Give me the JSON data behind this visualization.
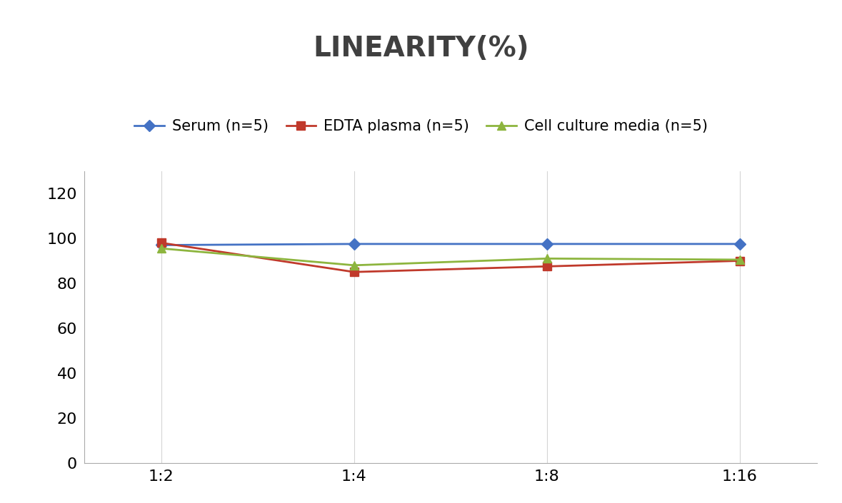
{
  "title": "LINEARITY(%)",
  "x_labels": [
    "1:2",
    "1:4",
    "1:8",
    "1:16"
  ],
  "x_positions": [
    0,
    1,
    2,
    3
  ],
  "series": [
    {
      "name": "Serum (n=5)",
      "values": [
        97,
        97.5,
        97.5,
        97.5
      ],
      "color": "#4472C4",
      "marker": "D",
      "linewidth": 2.0,
      "markersize": 8
    },
    {
      "name": "EDTA plasma (n=5)",
      "values": [
        98,
        85,
        87.5,
        90
      ],
      "color": "#C0392B",
      "marker": "s",
      "linewidth": 2.0,
      "markersize": 8
    },
    {
      "name": "Cell culture media (n=5)",
      "values": [
        95.5,
        88,
        91,
        90.5
      ],
      "color": "#8DB53E",
      "marker": "^",
      "linewidth": 2.0,
      "markersize": 8
    }
  ],
  "ylim": [
    0,
    130
  ],
  "yticks": [
    0,
    20,
    40,
    60,
    80,
    100,
    120
  ],
  "background_color": "#ffffff",
  "grid_color": "#d5d5d5",
  "title_fontsize": 28,
  "tick_fontsize": 16,
  "legend_fontsize": 15
}
